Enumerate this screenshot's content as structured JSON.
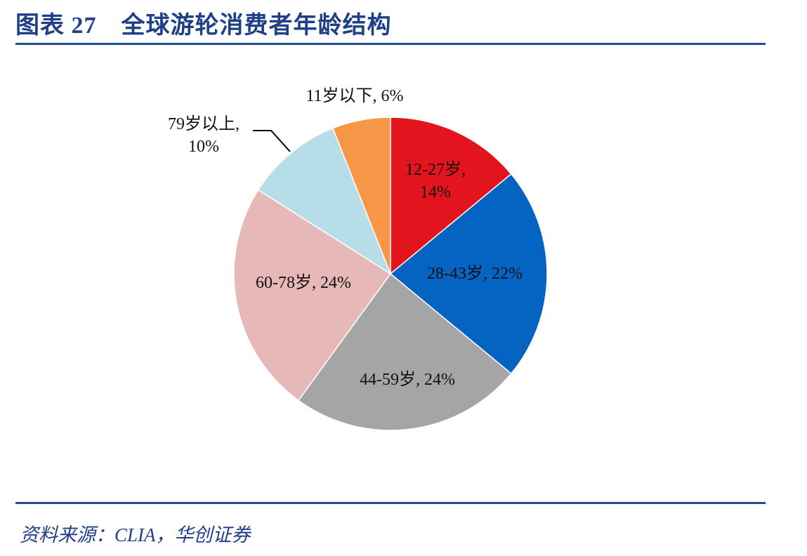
{
  "header": {
    "title": "图表 27　全球游轮消费者年龄结构"
  },
  "chart_data": {
    "type": "pie",
    "values": [
      14,
      22,
      24,
      24,
      10,
      6
    ],
    "value_labels": [
      "12-27岁, 14%",
      "28-43岁, 22%",
      "44-59岁, 24%",
      "60-78岁, 24%",
      "79岁以上, 10%",
      "11岁以下, 6%"
    ],
    "colors": [
      "#e3141e",
      "#0563c1",
      "#a5a5a5",
      "#e6b9b8",
      "#b7dde8",
      "#f79646"
    ]
  },
  "footer": {
    "source": "资料来源：CLIA，华创证券"
  }
}
